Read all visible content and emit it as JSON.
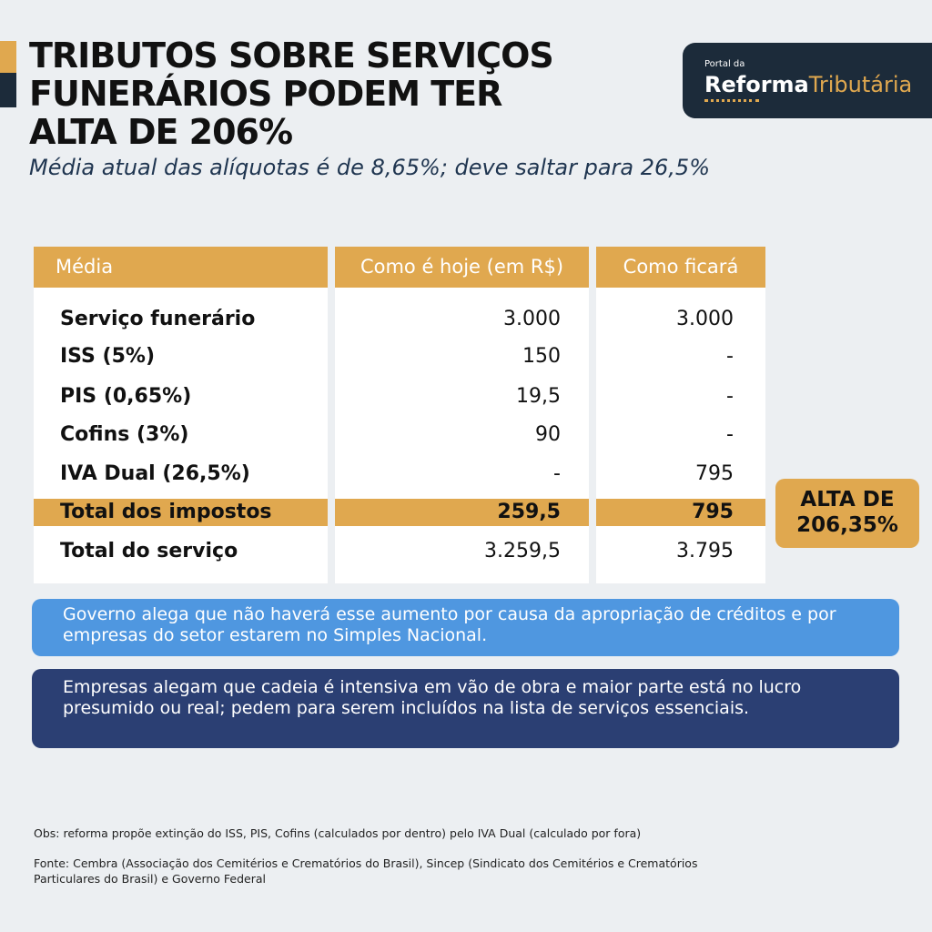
{
  "header": {
    "title_lines": [
      "TRIBUTOS SOBRE SERVIÇOS",
      "FUNERÁRIOS PODEM TER",
      "ALTA DE 206%"
    ],
    "subtitle": "Média atual das alíquotas é de 8,65%; deve saltar para 26,5%",
    "logo": {
      "top": "Portal da",
      "brand_bold": "Reforma",
      "brand_light": "Tributária"
    }
  },
  "table": {
    "headers": [
      "Média",
      "Como é hoje (em R$)",
      "Como ficará"
    ],
    "rows": [
      [
        "Serviço funerário",
        "3.000",
        "3.000"
      ],
      [
        "ISS (5%)",
        "150",
        "-"
      ],
      [
        "PIS (0,65%)",
        "19,5",
        "-"
      ],
      [
        "Cofins (3%)",
        "90",
        "-"
      ],
      [
        "IVA Dual (26,5%)",
        "-",
        "795"
      ],
      [
        "Total dos impostos",
        "259,5",
        "795"
      ],
      [
        "Total do serviço",
        "3.259,5",
        "3.795"
      ]
    ]
  },
  "badge_lines": [
    "ALTA DE",
    "206,35%"
  ],
  "notes": [
    "Governo alega que não haverá esse aumento por causa da apropriação de créditos e por empresas do setor estarem no Simples Nacional.",
    "Empresas alegam que cadeia é intensiva em vão de obra e maior parte está no lucro presumido ou real; pedem para serem incluídos na lista de serviços essenciais."
  ],
  "footer": {
    "obs": "Obs: reforma propõe extinção do ISS, PIS, Cofins (calculados por dentro) pelo IVA Dual (calculado por fora)",
    "source": "Fonte: Cembra (Associação dos Cemitérios e Crematórios do Brasil), Sincep (Sindicato dos Cemitérios e Crematórios Particulares do Brasil) e Governo Federal"
  }
}
